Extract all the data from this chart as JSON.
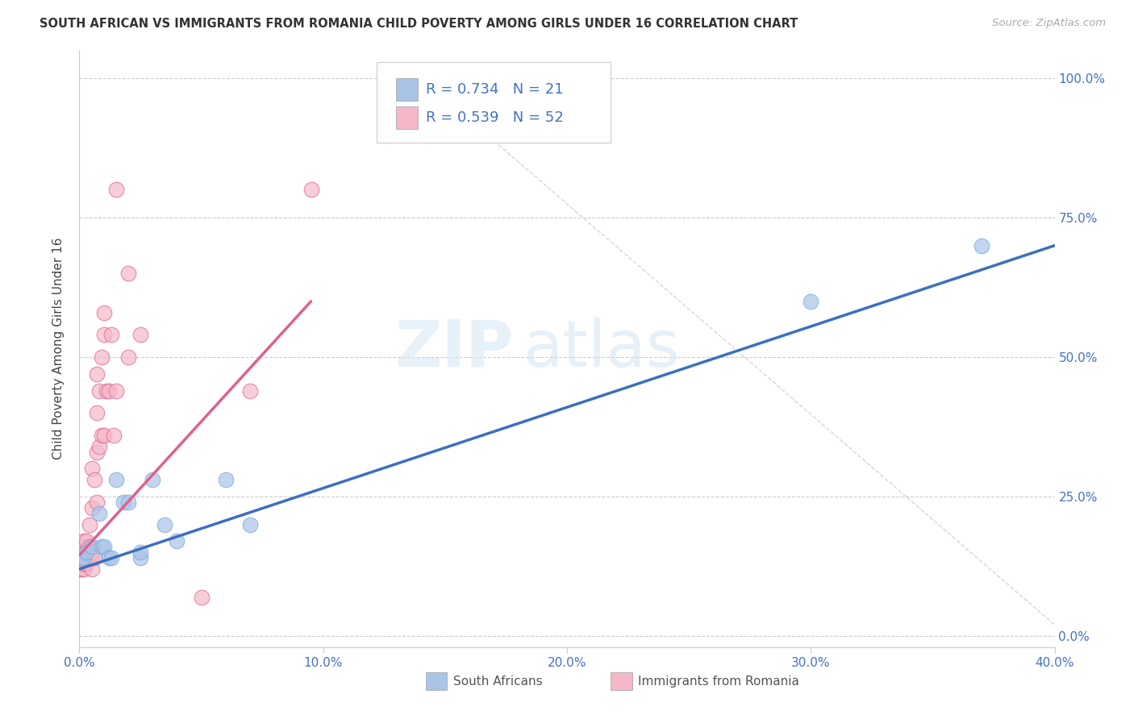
{
  "title": "SOUTH AFRICAN VS IMMIGRANTS FROM ROMANIA CHILD POVERTY AMONG GIRLS UNDER 16 CORRELATION CHART",
  "source": "Source: ZipAtlas.com",
  "ylabel": "Child Poverty Among Girls Under 16",
  "xlim": [
    0.0,
    0.4
  ],
  "ylim": [
    -0.02,
    1.05
  ],
  "xticks": [
    0.0,
    0.1,
    0.2,
    0.3,
    0.4
  ],
  "yticks": [
    0.0,
    0.25,
    0.5,
    0.75,
    1.0
  ],
  "xtick_labels": [
    "0.0%",
    "10.0%",
    "20.0%",
    "30.0%",
    "40.0%"
  ],
  "ytick_labels": [
    "0.0%",
    "25.0%",
    "50.0%",
    "75.0%",
    "100.0%"
  ],
  "blue_color": "#aac4e8",
  "pink_color": "#f4b8c8",
  "blue_edge_color": "#6fa8dc",
  "pink_edge_color": "#e06090",
  "blue_line_color": "#3d6fbe",
  "pink_line_color": "#e06090",
  "grid_color": "#cccccc",
  "background_color": "#ffffff",
  "watermark_zip": "ZIP",
  "watermark_atlas": "atlas",
  "legend_r_blue": "R = 0.734",
  "legend_n_blue": "N = 21",
  "legend_r_pink": "R = 0.539",
  "legend_n_pink": "N = 52",
  "legend_label_blue": "South Africans",
  "legend_label_pink": "Immigrants from Romania",
  "blue_scatter_x": [
    0.001,
    0.002,
    0.003,
    0.005,
    0.008,
    0.009,
    0.01,
    0.012,
    0.013,
    0.015,
    0.018,
    0.02,
    0.025,
    0.025,
    0.03,
    0.035,
    0.04,
    0.06,
    0.07,
    0.3,
    0.37
  ],
  "blue_scatter_y": [
    0.14,
    0.14,
    0.15,
    0.16,
    0.22,
    0.16,
    0.16,
    0.14,
    0.14,
    0.28,
    0.24,
    0.24,
    0.14,
    0.15,
    0.28,
    0.2,
    0.17,
    0.28,
    0.2,
    0.6,
    0.7
  ],
  "pink_scatter_x": [
    0.0,
    0.0,
    0.0,
    0.0,
    0.0,
    0.001,
    0.001,
    0.001,
    0.001,
    0.001,
    0.002,
    0.002,
    0.002,
    0.002,
    0.002,
    0.003,
    0.003,
    0.003,
    0.004,
    0.004,
    0.004,
    0.005,
    0.005,
    0.005,
    0.005,
    0.005,
    0.006,
    0.006,
    0.007,
    0.007,
    0.007,
    0.007,
    0.008,
    0.008,
    0.009,
    0.009,
    0.01,
    0.01,
    0.01,
    0.011,
    0.012,
    0.013,
    0.014,
    0.015,
    0.015,
    0.02,
    0.02,
    0.025,
    0.05,
    0.07,
    0.095,
    0.2
  ],
  "pink_scatter_y": [
    0.12,
    0.13,
    0.14,
    0.14,
    0.15,
    0.12,
    0.13,
    0.14,
    0.15,
    0.16,
    0.12,
    0.13,
    0.14,
    0.15,
    0.17,
    0.13,
    0.15,
    0.17,
    0.14,
    0.16,
    0.2,
    0.12,
    0.14,
    0.15,
    0.23,
    0.3,
    0.14,
    0.28,
    0.24,
    0.33,
    0.4,
    0.47,
    0.34,
    0.44,
    0.36,
    0.5,
    0.36,
    0.54,
    0.58,
    0.44,
    0.44,
    0.54,
    0.36,
    0.44,
    0.8,
    0.5,
    0.65,
    0.54,
    0.07,
    0.44,
    0.8,
    0.96
  ],
  "blue_line_x": [
    0.0,
    0.4
  ],
  "blue_line_y": [
    0.12,
    0.7
  ],
  "pink_line_x": [
    0.0,
    0.095
  ],
  "pink_line_y": [
    0.145,
    0.6
  ],
  "ref_line_x": [
    0.135,
    0.4
  ],
  "ref_line_y": [
    1.02,
    0.02
  ]
}
